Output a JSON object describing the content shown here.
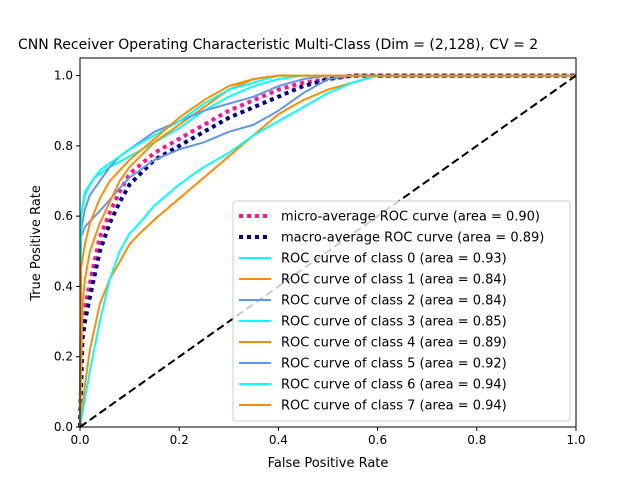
{
  "chart_data": {
    "type": "line",
    "title": "CNN Receiver Operating Characteristic Multi-Class (Dim = (2,128), CV = 2",
    "xlabel": "False Positive Rate",
    "ylabel": "True Positive Rate",
    "xlim": [
      0,
      1
    ],
    "ylim": [
      0,
      1.05
    ],
    "xticks": [
      "0.0",
      "0.2",
      "0.4",
      "0.6",
      "0.8",
      "1.0"
    ],
    "yticks": [
      "0.0",
      "0.2",
      "0.4",
      "0.6",
      "0.8",
      "1.0"
    ],
    "grid": false,
    "legend_position": "lower-right",
    "series": [
      {
        "name": "micro-average ROC curve (area = 0.90)",
        "color": "#ff1493",
        "style": "dotted",
        "x": [
          0,
          0.005,
          0.01,
          0.02,
          0.04,
          0.06,
          0.08,
          0.1,
          0.15,
          0.2,
          0.25,
          0.3,
          0.35,
          0.4,
          0.45,
          0.5,
          0.55,
          0.6,
          0.8,
          1.0
        ],
        "y": [
          0.0,
          0.29,
          0.34,
          0.41,
          0.54,
          0.61,
          0.67,
          0.72,
          0.78,
          0.82,
          0.86,
          0.9,
          0.93,
          0.96,
          0.98,
          0.99,
          1.0,
          1.0,
          1.0,
          1.0
        ]
      },
      {
        "name": "macro-average ROC curve (area = 0.89)",
        "color": "#000080",
        "style": "dotted",
        "x": [
          0,
          0.005,
          0.01,
          0.02,
          0.04,
          0.06,
          0.08,
          0.1,
          0.15,
          0.2,
          0.25,
          0.3,
          0.35,
          0.4,
          0.45,
          0.5,
          0.55,
          0.6,
          0.8,
          1.0
        ],
        "y": [
          0.0,
          0.25,
          0.3,
          0.37,
          0.5,
          0.58,
          0.64,
          0.69,
          0.76,
          0.8,
          0.84,
          0.88,
          0.91,
          0.94,
          0.97,
          0.99,
          1.0,
          1.0,
          1.0,
          1.0
        ]
      },
      {
        "name": "ROC curve of class 0 (area = 0.93)",
        "color": "#00ffff",
        "style": "solid",
        "x": [
          0,
          0.002,
          0.01,
          0.03,
          0.06,
          0.1,
          0.15,
          0.2,
          0.25,
          0.3,
          0.35,
          0.4,
          0.45,
          0.5,
          0.55,
          0.6,
          1.0
        ],
        "y": [
          0.0,
          0.6,
          0.67,
          0.71,
          0.74,
          0.77,
          0.81,
          0.85,
          0.9,
          0.94,
          0.97,
          0.99,
          1.0,
          1.0,
          1.0,
          1.0,
          1.0
        ]
      },
      {
        "name": "ROC curve of class 1 (area = 0.84)",
        "color": "#ff8c00",
        "style": "solid",
        "x": [
          0,
          0.01,
          0.02,
          0.04,
          0.06,
          0.08,
          0.1,
          0.12,
          0.15,
          0.2,
          0.25,
          0.3,
          0.35,
          0.4,
          0.45,
          0.5,
          0.55,
          0.6,
          1.0
        ],
        "y": [
          0.0,
          0.12,
          0.22,
          0.35,
          0.42,
          0.47,
          0.52,
          0.55,
          0.59,
          0.65,
          0.71,
          0.77,
          0.83,
          0.89,
          0.93,
          0.96,
          0.98,
          1.0,
          1.0
        ]
      },
      {
        "name": "ROC curve of class 2 (area = 0.84)",
        "color": "#6495ed",
        "style": "solid",
        "x": [
          0,
          0.002,
          0.01,
          0.03,
          0.05,
          0.08,
          0.1,
          0.15,
          0.2,
          0.25,
          0.3,
          0.35,
          0.4,
          0.45,
          0.5,
          0.55,
          0.6,
          1.0
        ],
        "y": [
          0.0,
          0.54,
          0.57,
          0.6,
          0.63,
          0.68,
          0.71,
          0.76,
          0.79,
          0.81,
          0.84,
          0.86,
          0.9,
          0.95,
          0.99,
          1.0,
          1.0,
          1.0
        ]
      },
      {
        "name": "ROC curve of class 3 (area = 0.85)",
        "color": "#00ffff",
        "style": "solid",
        "x": [
          0,
          0.02,
          0.04,
          0.06,
          0.08,
          0.1,
          0.12,
          0.15,
          0.2,
          0.25,
          0.3,
          0.35,
          0.4,
          0.45,
          0.5,
          0.55,
          0.6,
          1.0
        ],
        "y": [
          0.0,
          0.16,
          0.3,
          0.42,
          0.5,
          0.55,
          0.58,
          0.63,
          0.69,
          0.74,
          0.78,
          0.83,
          0.87,
          0.91,
          0.95,
          0.98,
          1.0,
          1.0
        ]
      },
      {
        "name": "ROC curve of class 4 (area = 0.89)",
        "color": "#ff8c00",
        "style": "solid",
        "x": [
          0,
          0.005,
          0.01,
          0.02,
          0.04,
          0.06,
          0.08,
          0.1,
          0.15,
          0.2,
          0.25,
          0.3,
          0.35,
          0.4,
          0.45,
          0.5,
          0.55,
          0.6,
          1.0
        ],
        "y": [
          0.0,
          0.35,
          0.42,
          0.5,
          0.58,
          0.64,
          0.7,
          0.74,
          0.81,
          0.86,
          0.91,
          0.96,
          0.99,
          1.0,
          1.0,
          1.0,
          1.0,
          1.0,
          1.0
        ]
      },
      {
        "name": "ROC curve of class 5 (area = 0.92)",
        "color": "#6495ed",
        "style": "solid",
        "x": [
          0,
          0.002,
          0.01,
          0.02,
          0.04,
          0.06,
          0.08,
          0.1,
          0.15,
          0.2,
          0.25,
          0.3,
          0.35,
          0.4,
          0.45,
          0.5,
          0.55,
          0.6,
          1.0
        ],
        "y": [
          0.0,
          0.56,
          0.62,
          0.66,
          0.7,
          0.74,
          0.77,
          0.79,
          0.84,
          0.87,
          0.9,
          0.92,
          0.94,
          0.97,
          0.99,
          1.0,
          1.0,
          1.0,
          1.0
        ]
      },
      {
        "name": "ROC curve of class 6 (area = 0.94)",
        "color": "#00ffff",
        "style": "solid",
        "x": [
          0,
          0.002,
          0.01,
          0.02,
          0.04,
          0.06,
          0.08,
          0.1,
          0.15,
          0.2,
          0.25,
          0.3,
          0.35,
          0.4,
          0.45,
          0.5,
          0.6,
          1.0
        ],
        "y": [
          0.0,
          0.6,
          0.66,
          0.69,
          0.73,
          0.75,
          0.77,
          0.79,
          0.83,
          0.87,
          0.92,
          0.96,
          0.98,
          1.0,
          1.0,
          1.0,
          1.0,
          1.0
        ]
      },
      {
        "name": "ROC curve of class 7 (area = 0.94)",
        "color": "#ff8c00",
        "style": "solid",
        "x": [
          0,
          0.002,
          0.01,
          0.02,
          0.04,
          0.06,
          0.08,
          0.1,
          0.15,
          0.2,
          0.25,
          0.3,
          0.35,
          0.4,
          0.45,
          0.5,
          0.6,
          1.0
        ],
        "y": [
          0.0,
          0.45,
          0.52,
          0.58,
          0.65,
          0.7,
          0.73,
          0.76,
          0.82,
          0.88,
          0.93,
          0.97,
          0.99,
          1.0,
          1.0,
          1.0,
          1.0,
          1.0
        ]
      },
      {
        "name": "",
        "color": "#000000",
        "style": "dashed",
        "x": [
          0,
          1
        ],
        "y": [
          0,
          1
        ]
      }
    ]
  }
}
